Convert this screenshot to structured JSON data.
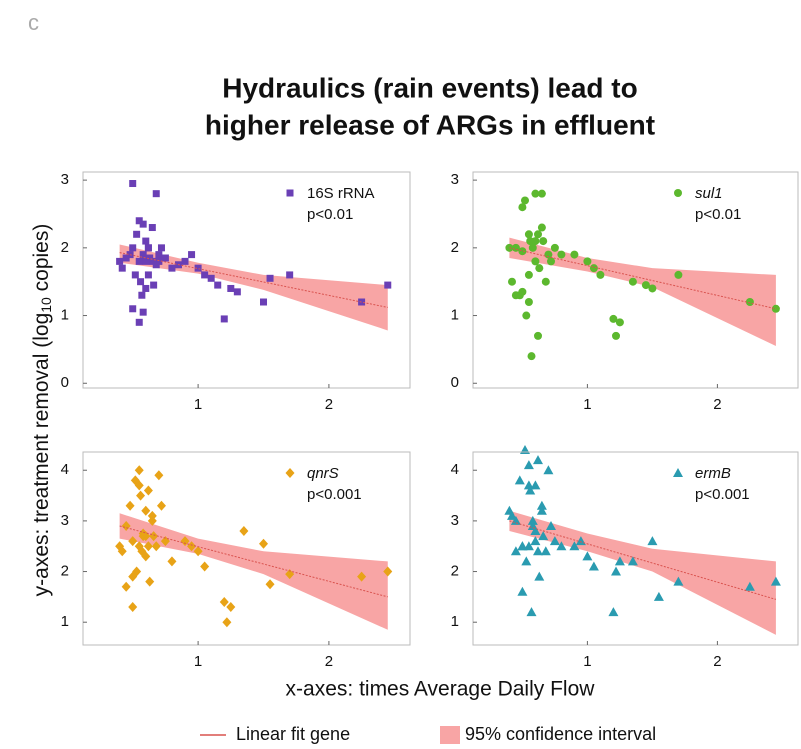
{
  "panel_label": "c",
  "title_lines": [
    "Hydraulics (rain events) lead to",
    "higher release of ARGs in effluent"
  ],
  "y_label": [
    "y-axes: treatment removal  (log",
    "10",
    " copies)"
  ],
  "x_label": "x-axes: times Average Daily Flow",
  "legend": [
    "Linear fit gene",
    "95% confidence interval"
  ],
  "chart_data": [
    {
      "type": "scatter",
      "marker": "square",
      "italic": false,
      "series": [
        {
          "name": "16S rRNA",
          "color": "#6a3fb5",
          "x": [
            0.4,
            0.42,
            0.45,
            0.48,
            0.5,
            0.5,
            0.52,
            0.53,
            0.55,
            0.55,
            0.56,
            0.57,
            0.58,
            0.58,
            0.6,
            0.6,
            0.62,
            0.62,
            0.63,
            0.65,
            0.65,
            0.66,
            0.68,
            0.7,
            0.7,
            0.72,
            0.75,
            0.8,
            0.85,
            0.9,
            0.95,
            1.0,
            1.05,
            1.1,
            1.15,
            1.2,
            1.25,
            1.3,
            1.5,
            1.55,
            1.7,
            2.25,
            2.45,
            0.5,
            0.55,
            0.58,
            0.6,
            0.62,
            0.68
          ],
          "values": [
            1.8,
            1.7,
            1.85,
            1.9,
            2.0,
            2.95,
            1.6,
            2.2,
            2.4,
            1.8,
            1.5,
            1.3,
            2.35,
            1.9,
            2.1,
            1.4,
            2.0,
            1.6,
            1.85,
            2.3,
            1.8,
            1.45,
            2.8,
            1.9,
            1.8,
            2.0,
            1.85,
            1.7,
            1.75,
            1.8,
            1.9,
            1.7,
            1.6,
            1.55,
            1.45,
            0.95,
            1.4,
            1.35,
            1.2,
            1.55,
            1.6,
            1.2,
            1.45,
            1.1,
            0.9,
            1.05,
            1.8,
            2.0,
            1.75
          ]
        }
      ],
      "annotation": "p<0.01",
      "fit": {
        "color": "#d9534f",
        "x": [
          0.4,
          2.45
        ],
        "y": [
          1.93,
          1.12
        ]
      },
      "band": {
        "color": "#f8a5a5",
        "x": [
          0.4,
          1.0,
          1.5,
          2.45
        ],
        "upper": [
          2.05,
          1.78,
          1.6,
          1.45
        ],
        "lower": [
          1.78,
          1.62,
          1.38,
          0.78
        ]
      },
      "xlim": [
        0.12,
        2.62
      ],
      "ylim": [
        -0.07,
        3.12
      ],
      "xticks": [
        1,
        2
      ],
      "yticks": [
        0,
        1,
        2,
        3
      ]
    },
    {
      "type": "scatter",
      "marker": "circle",
      "italic": true,
      "series": [
        {
          "name": "sul1",
          "color": "#5cb82e",
          "x": [
            0.4,
            0.42,
            0.45,
            0.45,
            0.48,
            0.5,
            0.5,
            0.52,
            0.53,
            0.55,
            0.55,
            0.56,
            0.57,
            0.58,
            0.6,
            0.6,
            0.62,
            0.62,
            0.63,
            0.65,
            0.66,
            0.68,
            0.7,
            0.72,
            0.75,
            0.8,
            0.9,
            1.0,
            1.05,
            1.1,
            1.2,
            1.22,
            1.25,
            1.35,
            1.45,
            1.5,
            1.7,
            2.25,
            2.45,
            0.5,
            0.6,
            0.65,
            0.55
          ],
          "values": [
            2.0,
            1.5,
            1.3,
            2.0,
            1.3,
            2.6,
            1.95,
            2.7,
            1.0,
            2.2,
            1.6,
            2.1,
            0.4,
            2.0,
            2.8,
            1.8,
            2.2,
            0.7,
            1.7,
            2.8,
            2.1,
            1.5,
            1.9,
            1.8,
            2.0,
            1.9,
            1.9,
            1.8,
            1.7,
            1.6,
            0.95,
            0.7,
            0.9,
            1.5,
            1.45,
            1.4,
            1.6,
            1.2,
            1.1,
            1.35,
            2.1,
            2.3,
            1.2
          ]
        }
      ],
      "annotation": "p<0.01",
      "fit": {
        "color": "#d9534f",
        "x": [
          0.4,
          2.45
        ],
        "y": [
          2.0,
          1.1
        ]
      },
      "band": {
        "color": "#f8a5a5",
        "x": [
          0.4,
          1.0,
          1.5,
          2.45
        ],
        "upper": [
          2.15,
          1.85,
          1.7,
          1.6
        ],
        "lower": [
          1.85,
          1.65,
          1.42,
          0.55
        ]
      },
      "xlim": [
        0.12,
        2.62
      ],
      "ylim": [
        -0.07,
        3.12
      ],
      "xticks": [
        1,
        2
      ],
      "yticks": [
        0,
        1,
        2,
        3
      ]
    },
    {
      "type": "scatter",
      "marker": "diamond",
      "italic": true,
      "series": [
        {
          "name": "qnrS",
          "color": "#e8a317",
          "x": [
            0.4,
            0.42,
            0.45,
            0.45,
            0.48,
            0.5,
            0.5,
            0.52,
            0.53,
            0.55,
            0.55,
            0.56,
            0.57,
            0.58,
            0.6,
            0.6,
            0.62,
            0.62,
            0.63,
            0.65,
            0.66,
            0.68,
            0.7,
            0.72,
            0.75,
            0.8,
            0.9,
            0.95,
            1.0,
            1.05,
            1.2,
            1.22,
            1.25,
            1.35,
            1.5,
            1.55,
            1.7,
            2.25,
            2.45,
            0.5,
            0.6,
            0.65,
            0.55,
            0.58
          ],
          "values": [
            2.5,
            2.4,
            2.9,
            1.7,
            3.3,
            2.6,
            1.3,
            3.8,
            2.0,
            4.0,
            2.5,
            3.5,
            2.4,
            2.7,
            3.2,
            2.7,
            3.6,
            2.5,
            1.8,
            3.0,
            2.7,
            2.5,
            3.9,
            3.3,
            2.6,
            2.2,
            2.6,
            2.5,
            2.4,
            2.1,
            1.4,
            1.0,
            1.3,
            2.8,
            2.55,
            1.75,
            1.95,
            1.9,
            2.0,
            1.9,
            2.3,
            3.1,
            3.7,
            2.75
          ]
        }
      ],
      "annotation": "p<0.001",
      "fit": {
        "color": "#d9534f",
        "x": [
          0.4,
          2.45
        ],
        "y": [
          2.9,
          1.5
        ]
      },
      "band": {
        "color": "#f8a5a5",
        "x": [
          0.4,
          1.0,
          1.5,
          2.45
        ],
        "upper": [
          3.15,
          2.65,
          2.4,
          2.2
        ],
        "lower": [
          2.65,
          2.35,
          1.95,
          0.85
        ]
      },
      "xlim": [
        0.12,
        2.62
      ],
      "ylim": [
        0.55,
        4.36
      ],
      "xticks": [
        1,
        2
      ],
      "yticks": [
        1,
        2,
        3,
        4
      ]
    },
    {
      "type": "scatter",
      "marker": "triangle",
      "italic": true,
      "series": [
        {
          "name": "ermB",
          "color": "#2a9bb0",
          "x": [
            0.4,
            0.42,
            0.45,
            0.45,
            0.48,
            0.5,
            0.5,
            0.52,
            0.53,
            0.55,
            0.55,
            0.56,
            0.57,
            0.58,
            0.6,
            0.6,
            0.62,
            0.62,
            0.63,
            0.65,
            0.66,
            0.68,
            0.7,
            0.72,
            0.75,
            0.8,
            0.9,
            0.95,
            1.0,
            1.05,
            1.2,
            1.22,
            1.25,
            1.35,
            1.5,
            1.55,
            1.7,
            2.25,
            2.45,
            0.5,
            0.6,
            0.65,
            0.55,
            0.58
          ],
          "values": [
            3.2,
            3.1,
            3.0,
            2.4,
            3.8,
            2.5,
            1.6,
            4.4,
            2.2,
            3.7,
            2.5,
            3.6,
            1.2,
            2.9,
            3.7,
            2.6,
            4.2,
            2.4,
            1.9,
            3.3,
            2.7,
            2.4,
            4.0,
            2.9,
            2.6,
            2.5,
            2.5,
            2.6,
            2.3,
            2.1,
            1.2,
            2.0,
            2.2,
            2.2,
            2.6,
            1.5,
            1.8,
            1.7,
            1.8,
            2.5,
            2.8,
            3.2,
            4.1,
            3.0
          ]
        }
      ],
      "annotation": "p<0.001",
      "fit": {
        "color": "#d9534f",
        "x": [
          0.4,
          2.45
        ],
        "y": [
          3.0,
          1.45
        ]
      },
      "band": {
        "color": "#f8a5a5",
        "x": [
          0.4,
          1.0,
          1.5,
          2.45
        ],
        "upper": [
          3.2,
          2.75,
          2.45,
          2.2
        ],
        "lower": [
          2.8,
          2.4,
          2.0,
          0.75
        ]
      },
      "xlim": [
        0.12,
        2.62
      ],
      "ylim": [
        0.55,
        4.36
      ],
      "xticks": [
        1,
        2
      ],
      "yticks": [
        1,
        2,
        3,
        4
      ]
    }
  ]
}
